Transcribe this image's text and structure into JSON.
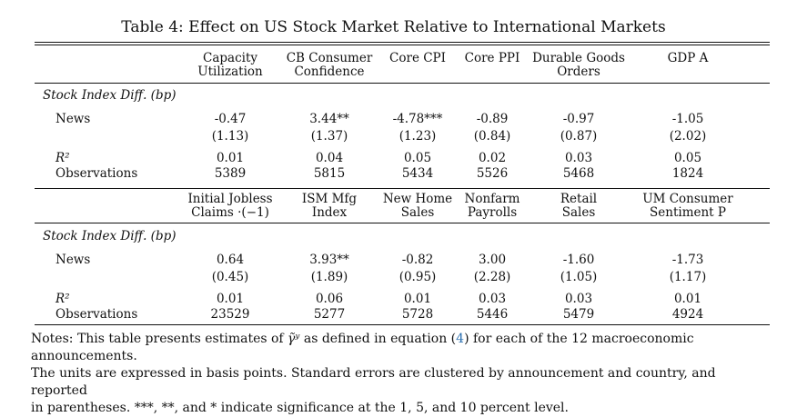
{
  "title": "Table 4: Effect on US Stock Market Relative to International Markets",
  "panel1": {
    "headers": [
      [
        "Capacity",
        "Utilization"
      ],
      [
        "CB Consumer",
        "Confidence"
      ],
      [
        "Core CPI",
        ""
      ],
      [
        "Core PPI",
        ""
      ],
      [
        "Durable Goods",
        "Orders"
      ],
      [
        "GDP A",
        ""
      ]
    ],
    "section_label": "Stock Index Diff. (bp)",
    "news_label": "News",
    "news": [
      "-0.47",
      "3.44**",
      "-4.78***",
      "-0.89",
      "-0.97",
      "-1.05"
    ],
    "se": [
      "(1.13)",
      "(1.37)",
      "(1.23)",
      "(0.84)",
      "(0.87)",
      "(2.02)"
    ],
    "r2_label": "R²",
    "r2": [
      "0.01",
      "0.04",
      "0.05",
      "0.02",
      "0.03",
      "0.05"
    ],
    "obs_label": "Observations",
    "obs": [
      "5389",
      "5815",
      "5434",
      "5526",
      "5468",
      "1824"
    ]
  },
  "panel2": {
    "headers": [
      [
        "Initial Jobless",
        "Claims ·(−1)"
      ],
      [
        "ISM Mfg",
        "Index"
      ],
      [
        "New Home",
        "Sales"
      ],
      [
        "Nonfarm",
        "Payrolls"
      ],
      [
        "Retail",
        "Sales"
      ],
      [
        "UM Consumer",
        "Sentiment P"
      ]
    ],
    "section_label": "Stock Index Diff. (bp)",
    "news_label": "News",
    "news": [
      "0.64",
      "3.93**",
      "-0.82",
      "3.00",
      "-1.60",
      "-1.73"
    ],
    "se": [
      "(0.45)",
      "(1.89)",
      "(0.95)",
      "(2.28)",
      "(1.05)",
      "(1.17)"
    ],
    "r2_label": "R²",
    "r2": [
      "0.01",
      "0.06",
      "0.01",
      "0.03",
      "0.03",
      "0.01"
    ],
    "obs_label": "Observations",
    "obs": [
      "23529",
      "5277",
      "5728",
      "5446",
      "5479",
      "4924"
    ]
  },
  "notes": {
    "line1_a": "Notes: This table presents estimates of",
    "symbol": "γ̃ʸ",
    "line1_b": "as defined in equation (",
    "eq_ref": "4",
    "line1_c": ") for each of the 12 macroeconomic announcements.",
    "line2": "The units are expressed in basis points. Standard errors are clustered by announcement and country, and reported",
    "line3": "in parentheses. ***, **, and * indicate significance at the 1, 5, and 10 percent level."
  },
  "colors": {
    "eq_ref": "#2a6fb0"
  }
}
